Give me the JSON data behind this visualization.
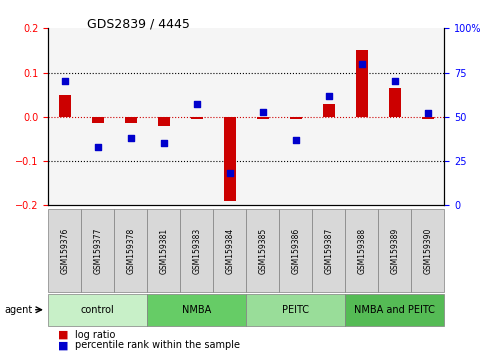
{
  "title": "GDS2839 / 4445",
  "samples": [
    "GSM159376",
    "GSM159377",
    "GSM159378",
    "GSM159381",
    "GSM159383",
    "GSM159384",
    "GSM159385",
    "GSM159386",
    "GSM159387",
    "GSM159388",
    "GSM159389",
    "GSM159390"
  ],
  "log_ratio": [
    0.05,
    -0.015,
    -0.015,
    -0.02,
    -0.005,
    -0.19,
    -0.005,
    -0.005,
    0.03,
    0.15,
    0.065,
    -0.005
  ],
  "percentile_rank": [
    70,
    33,
    38,
    35,
    57,
    18,
    53,
    37,
    62,
    80,
    70,
    52
  ],
  "groups": [
    {
      "label": "control",
      "start": 0,
      "end": 3,
      "color": "#c8f0c8"
    },
    {
      "label": "NMBA",
      "start": 3,
      "end": 6,
      "color": "#66cc66"
    },
    {
      "label": "PEITC",
      "start": 6,
      "end": 9,
      "color": "#99dd99"
    },
    {
      "label": "NMBA and PEITC",
      "start": 9,
      "end": 12,
      "color": "#55bb55"
    }
  ],
  "ylim_left": [
    -0.2,
    0.2
  ],
  "ylim_right": [
    0,
    100
  ],
  "yticks_left": [
    -0.2,
    -0.1,
    0.0,
    0.1,
    0.2
  ],
  "yticks_right": [
    0,
    25,
    50,
    75,
    100
  ],
  "bar_color_red": "#cc0000",
  "bar_color_blue": "#0000cc",
  "dotted_line_color": "black",
  "zero_line_color": "#cc0000",
  "background_plot": "#f5f5f5",
  "agent_label": "agent",
  "legend_log_ratio": "log ratio",
  "legend_percentile": "percentile rank within the sample"
}
